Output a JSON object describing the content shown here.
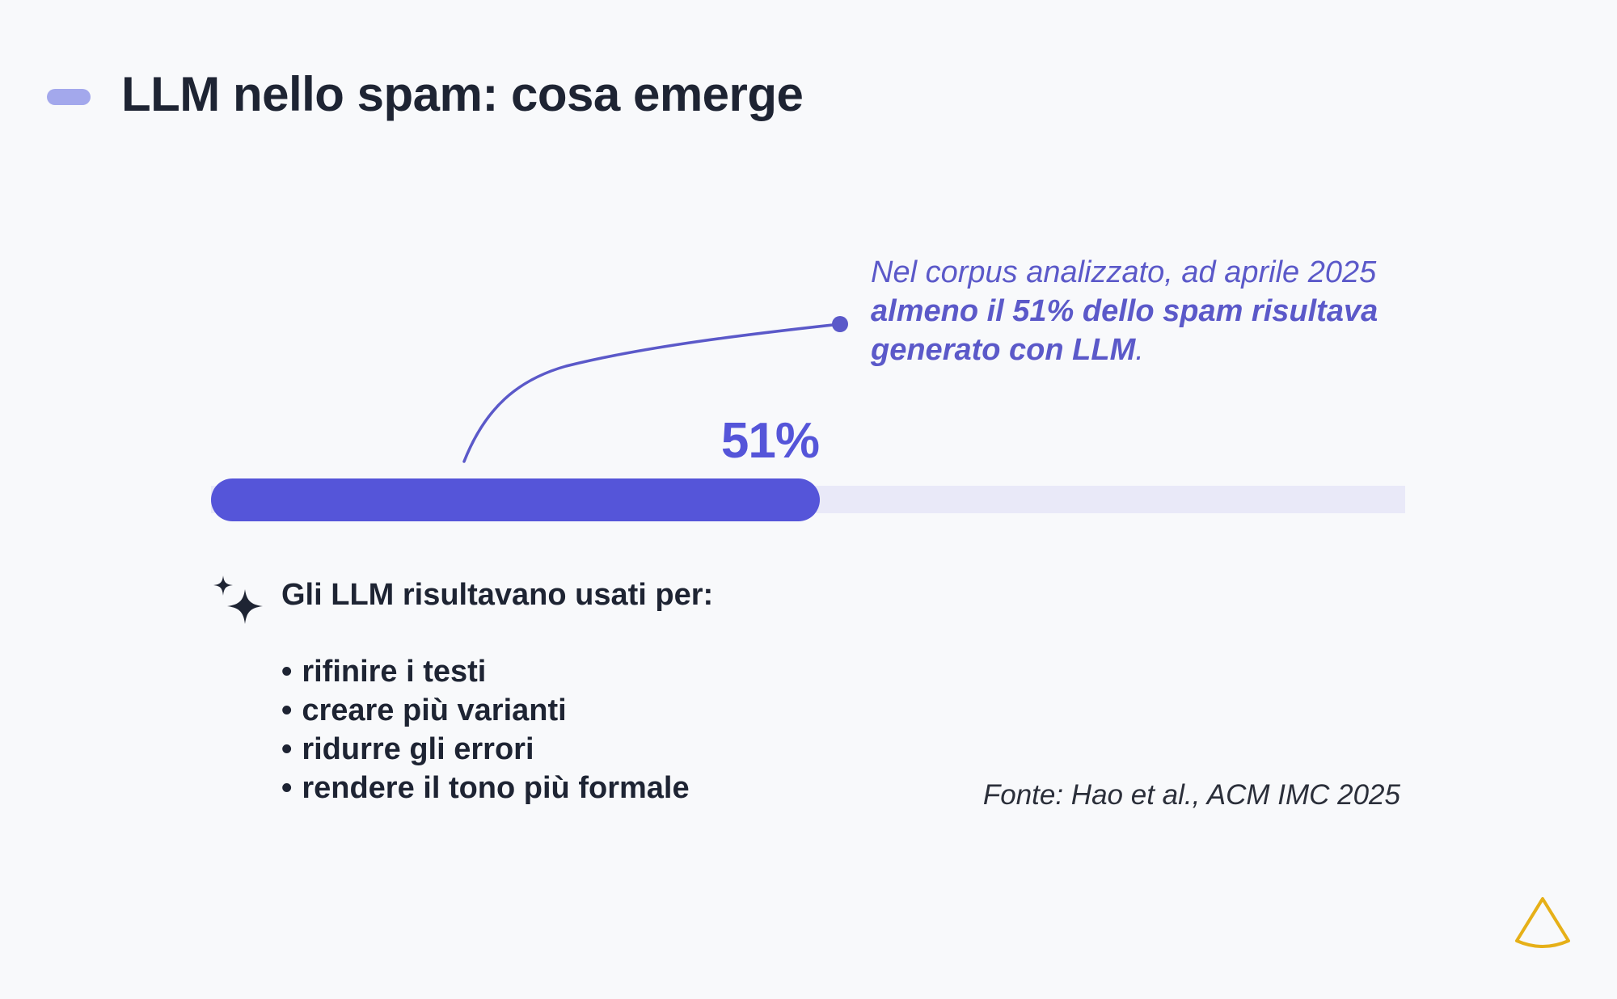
{
  "slide": {
    "title": "LLM nello spam: cosa emerge"
  },
  "callout": {
    "text_normal": "Nel corpus analizzato, ad aprile 2025 ",
    "text_strong": "almeno il 51% dello spam risultava generato con LLM",
    "text_end": "."
  },
  "progress": {
    "label": "51%",
    "value_percent": 51,
    "color": "#5555d9",
    "track_color": "#e9e9f8"
  },
  "uses": {
    "heading": "Gli LLM risultavano usati per:",
    "items": [
      "rifinire i testi",
      "creare più varianti",
      "ridurre gli errori",
      "rendere il tono più formale"
    ]
  },
  "source": {
    "text": "Fonte: Hao et al., ACM IMC 2025"
  },
  "colors": {
    "accent": "#5555d9",
    "accent_light": "#a3a8ec",
    "text": "#1e2433",
    "logo": "#e6b018",
    "background": "#f8f9fb"
  }
}
